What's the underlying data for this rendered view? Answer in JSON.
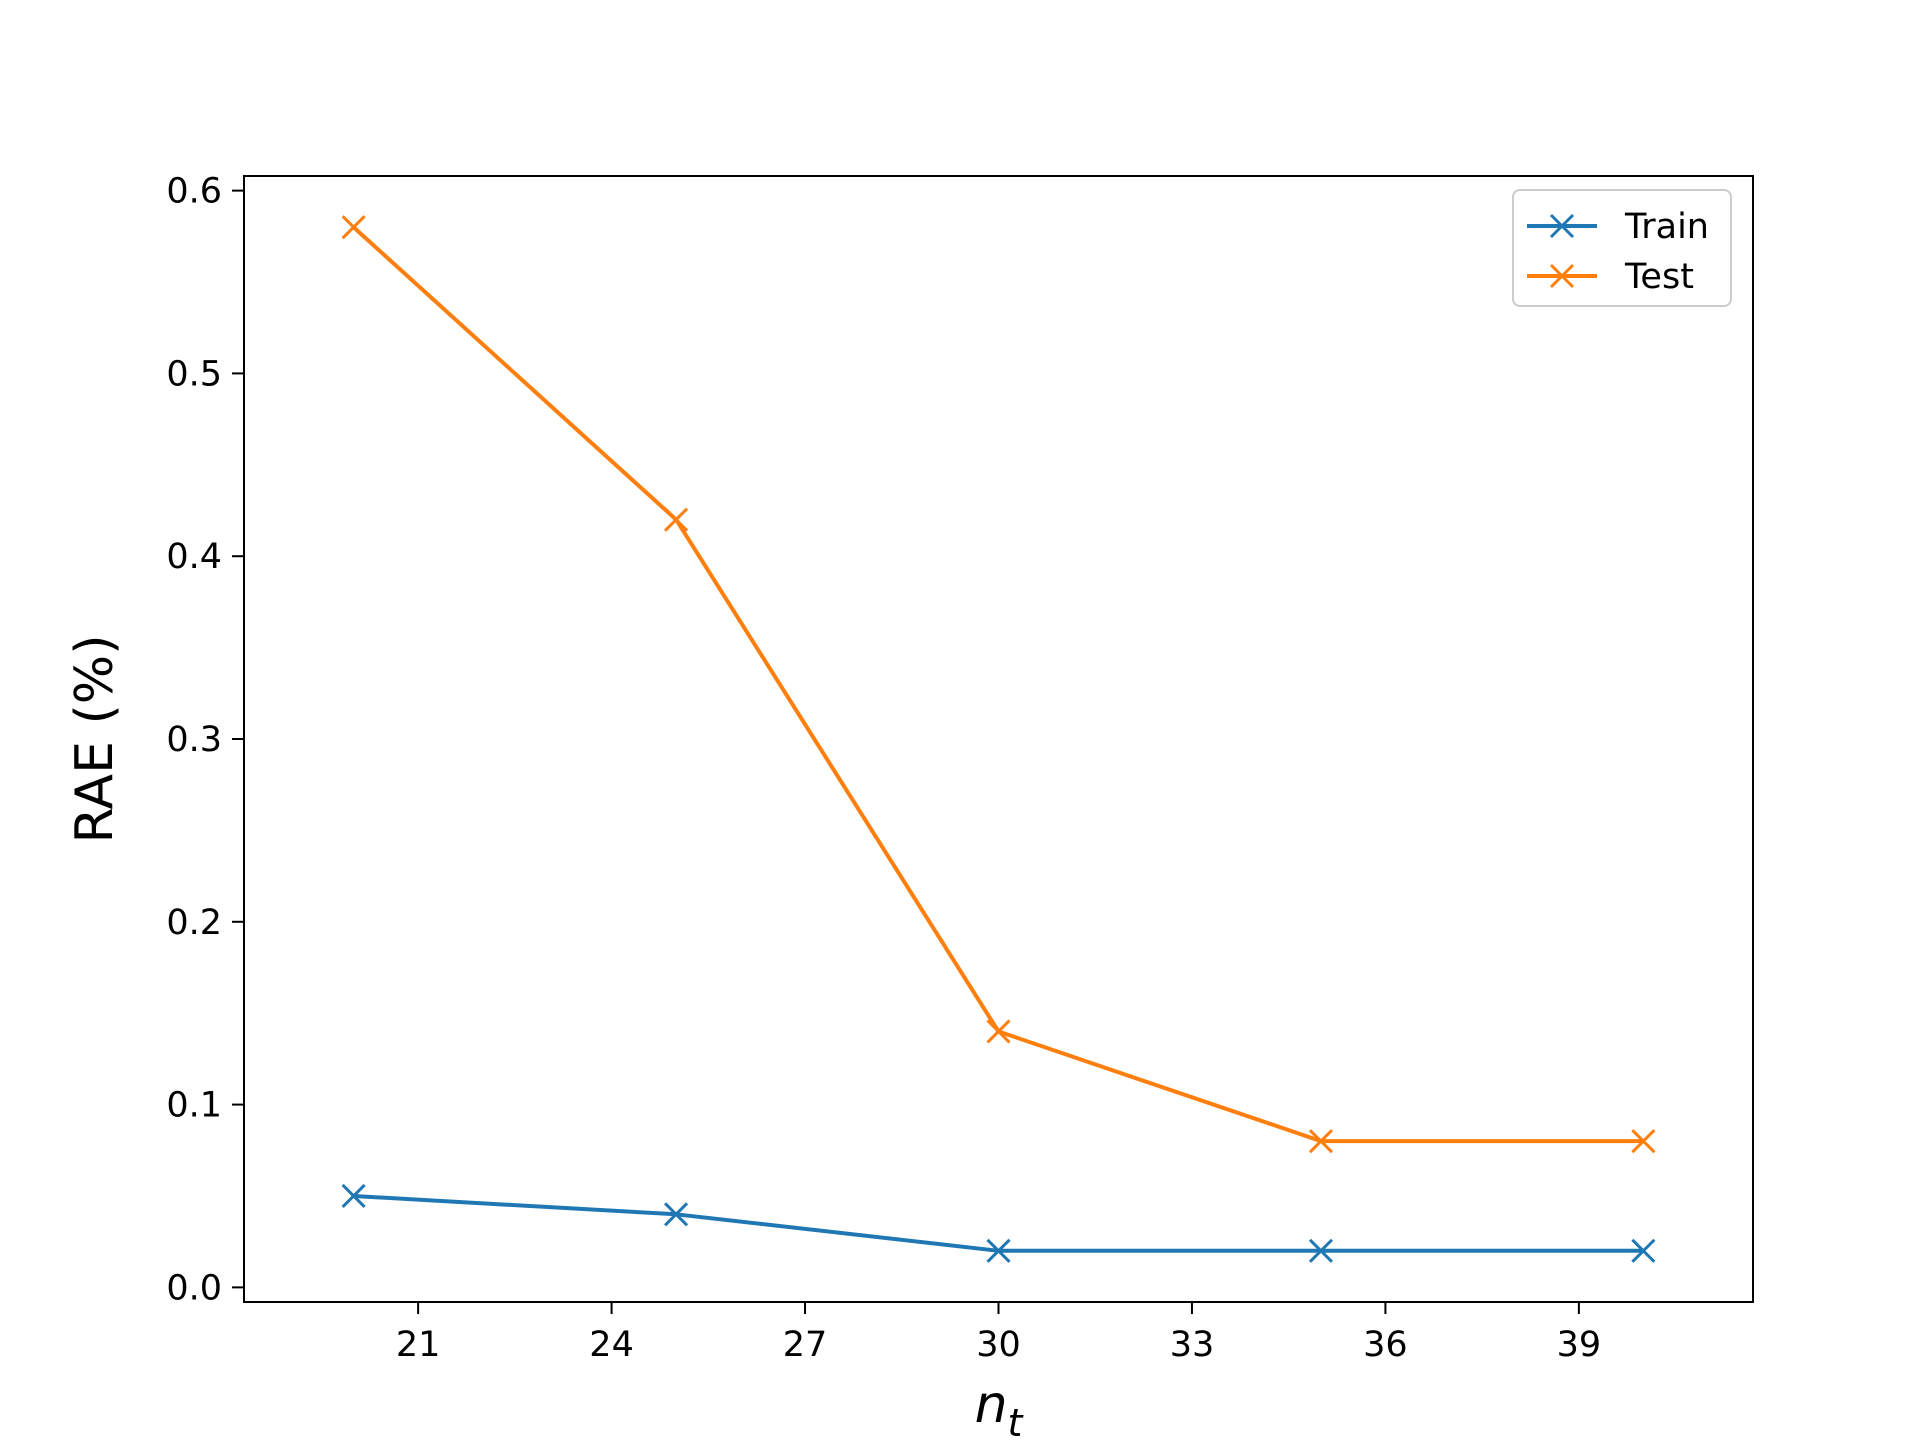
{
  "chart_data": {
    "type": "line",
    "x": [
      20,
      25,
      30,
      35,
      40
    ],
    "series": [
      {
        "name": "Train",
        "values": [
          0.05,
          0.04,
          0.02,
          0.02,
          0.02
        ],
        "color": "#1f77b4",
        "marker": "x"
      },
      {
        "name": "Test",
        "values": [
          0.58,
          0.42,
          0.14,
          0.08,
          0.08
        ],
        "color": "#ff7f0e",
        "marker": "x"
      }
    ],
    "title": "",
    "xlabel_base": "n",
    "xlabel_sub": "t",
    "ylabel": "RAE (%)",
    "xlim": [
      18.3,
      41.7
    ],
    "ylim": [
      -0.008,
      0.608
    ],
    "xticks": [
      21,
      24,
      27,
      30,
      33,
      36,
      39
    ],
    "yticks": [
      0.0,
      0.1,
      0.2,
      0.3,
      0.4,
      0.5,
      0.6
    ],
    "ytick_labels": [
      "0.0",
      "0.1",
      "0.2",
      "0.3",
      "0.4",
      "0.5",
      "0.6"
    ],
    "grid": false,
    "legend_position": "top-right"
  }
}
